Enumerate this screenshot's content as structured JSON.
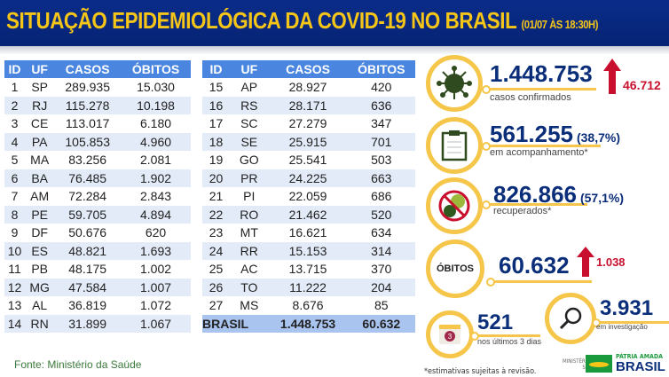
{
  "header": {
    "title": "SITUAÇÃO EPIDEMIOLÓGICA DA COVID-19 NO BRASIL",
    "date": "(01/07 ÀS 18:30H)"
  },
  "table_headers": [
    "ID",
    "UF",
    "CASOS",
    "ÓBITOS"
  ],
  "table1": [
    [
      "1",
      "SP",
      "289.935",
      "15.030"
    ],
    [
      "2",
      "RJ",
      "115.278",
      "10.198"
    ],
    [
      "3",
      "CE",
      "113.017",
      "6.180"
    ],
    [
      "4",
      "PA",
      "105.853",
      "4.960"
    ],
    [
      "5",
      "MA",
      "83.256",
      "2.081"
    ],
    [
      "6",
      "BA",
      "76.485",
      "1.902"
    ],
    [
      "7",
      "AM",
      "72.284",
      "2.843"
    ],
    [
      "8",
      "PE",
      "59.705",
      "4.894"
    ],
    [
      "9",
      "DF",
      "50.676",
      "620"
    ],
    [
      "10",
      "ES",
      "48.821",
      "1.693"
    ],
    [
      "11",
      "PB",
      "48.175",
      "1.002"
    ],
    [
      "12",
      "MG",
      "47.584",
      "1.007"
    ],
    [
      "13",
      "AL",
      "36.819",
      "1.072"
    ],
    [
      "14",
      "RN",
      "31.899",
      "1.067"
    ]
  ],
  "table2": [
    [
      "15",
      "AP",
      "28.927",
      "420"
    ],
    [
      "16",
      "RS",
      "28.171",
      "636"
    ],
    [
      "17",
      "SC",
      "27.279",
      "347"
    ],
    [
      "18",
      "SE",
      "25.915",
      "701"
    ],
    [
      "19",
      "GO",
      "25.541",
      "503"
    ],
    [
      "20",
      "PR",
      "24.225",
      "663"
    ],
    [
      "21",
      "PI",
      "22.059",
      "686"
    ],
    [
      "22",
      "RO",
      "21.462",
      "520"
    ],
    [
      "23",
      "MT",
      "16.621",
      "634"
    ],
    [
      "24",
      "RR",
      "15.153",
      "314"
    ],
    [
      "25",
      "AC",
      "13.715",
      "370"
    ],
    [
      "26",
      "TO",
      "11.222",
      "204"
    ],
    [
      "27",
      "MS",
      "8.676",
      "85"
    ]
  ],
  "total": {
    "label": "BRASIL",
    "casos": "1.448.753",
    "obitos": "60.632"
  },
  "source": "Fonte: Ministério da Saúde",
  "stats": {
    "confirmed": {
      "value": "1.448.753",
      "label": "casos confirmados",
      "delta": "46.712"
    },
    "monitoring": {
      "value": "561.255",
      "pct": "(38,7%)",
      "label": "em acompanhamento*"
    },
    "recovered": {
      "value": "826.866",
      "pct": "(57,1%)",
      "label": "recuperados*"
    },
    "deaths": {
      "badge": "ÓBITOS",
      "value": "60.632",
      "delta": "1.038"
    },
    "last3": {
      "value": "521",
      "label": "nos últimos 3 dias",
      "icon_num": "3"
    },
    "investigation": {
      "value": "3.931",
      "label": "em investigação"
    }
  },
  "note": "*estimativas sujeitas à revisão.",
  "logo": {
    "ministry": "MINISTÉRIO DA",
    "ministry2": "SAÚDE",
    "line1": "PÁTRIA AMADA",
    "line2": "BRASIL"
  }
}
